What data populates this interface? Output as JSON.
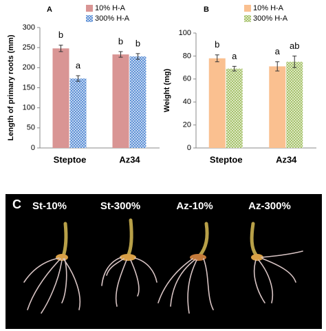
{
  "chart_data": [
    {
      "type": "bar",
      "panel_label": "A",
      "y_label": "Length of primary roots (mm)",
      "categories": [
        "Steptoe",
        "Az34"
      ],
      "series": [
        {
          "name": "10% H-A",
          "color": "#d99594",
          "values": [
            248,
            233
          ],
          "errors": [
            8,
            7
          ],
          "letters": [
            "b",
            "b"
          ]
        },
        {
          "name": "300% H-A",
          "color": "#5b8fd6",
          "pattern": "checker",
          "values": [
            173,
            228
          ],
          "errors": [
            7,
            7
          ],
          "letters": [
            "a",
            "b"
          ]
        }
      ],
      "ylim": [
        0,
        300
      ],
      "yticks": [
        0,
        50,
        100,
        150,
        200,
        250,
        300
      ]
    },
    {
      "type": "bar",
      "panel_label": "B",
      "y_label": "Weight (mg)",
      "categories": [
        "Steptoe",
        "Az34"
      ],
      "series": [
        {
          "name": "10% H-A",
          "color": "#fac090",
          "values": [
            78,
            71
          ],
          "errors": [
            3,
            4
          ],
          "letters": [
            "b",
            "a"
          ]
        },
        {
          "name": "300% H-A",
          "color": "#9bbb59",
          "pattern": "hatch",
          "values": [
            69,
            75
          ],
          "errors": [
            2,
            5
          ],
          "letters": [
            "a",
            "ab"
          ]
        }
      ],
      "ylim": [
        0,
        100
      ],
      "yticks": [
        0,
        20,
        40,
        60,
        80,
        100
      ]
    }
  ],
  "photo_panel": {
    "label": "C",
    "captions": [
      "St-10%",
      "St-300%",
      "Az-10%",
      "Az-300%"
    ]
  }
}
